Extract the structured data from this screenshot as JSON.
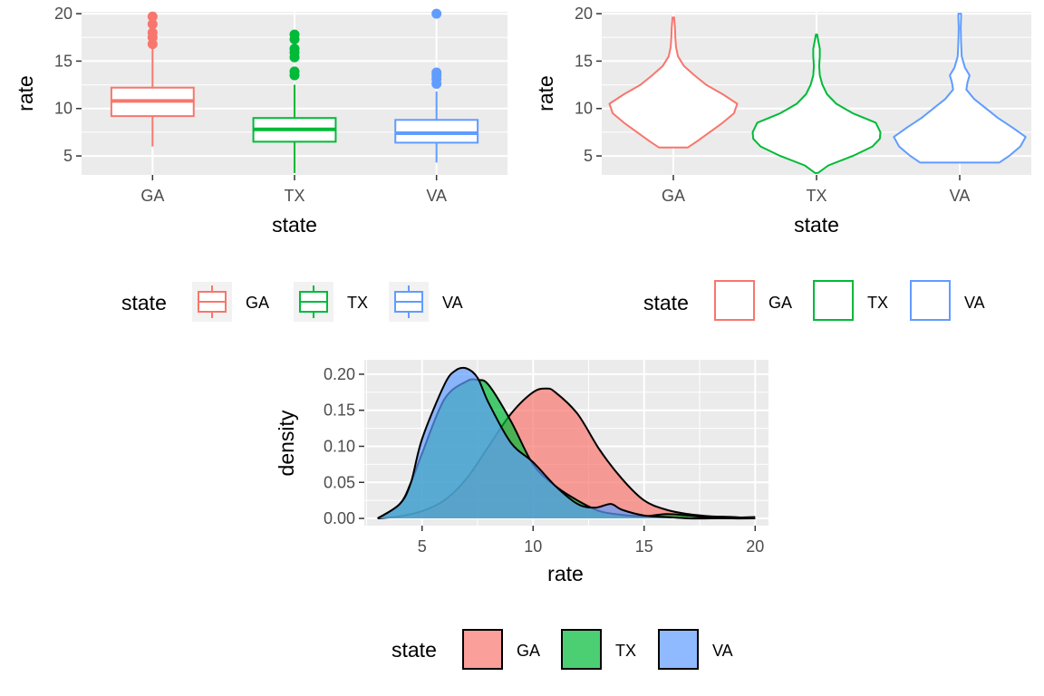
{
  "colors": {
    "GA": "#F8766D",
    "TX": "#00BA38",
    "VA": "#619CFF",
    "GA_fill": "#F8766D",
    "TX_fill": "#00BA38",
    "VA_fill": "#619CFF"
  },
  "chart_data": [
    {
      "type": "boxplot",
      "xlabel": "state",
      "ylabel": "rate",
      "categories": [
        "GA",
        "TX",
        "VA"
      ],
      "yticks": [
        "5",
        "10",
        "15",
        "20"
      ],
      "ylim": [
        3,
        20.2
      ],
      "boxes": [
        {
          "name": "GA",
          "min": 6.0,
          "q1": 9.2,
          "median": 10.8,
          "q3": 12.2,
          "max": 16.3,
          "outliers": [
            16.8,
            17.5,
            18.0,
            18.9,
            19.7
          ]
        },
        {
          "name": "TX",
          "min": 3.2,
          "q1": 6.5,
          "median": 7.8,
          "q3": 9.0,
          "max": 12.5,
          "outliers": [
            13.5,
            13.9,
            15.4,
            15.9,
            16.3,
            17.3,
            17.8
          ]
        },
        {
          "name": "VA",
          "min": 4.3,
          "q1": 6.4,
          "median": 7.4,
          "q3": 8.8,
          "max": 11.8,
          "outliers": [
            12.6,
            13.1,
            13.5,
            13.8,
            20.0
          ]
        }
      ],
      "legend": {
        "title": "state",
        "entries": [
          "GA",
          "TX",
          "VA"
        ]
      }
    },
    {
      "type": "violin",
      "xlabel": "state",
      "ylabel": "rate",
      "categories": [
        "GA",
        "TX",
        "VA"
      ],
      "yticks": [
        "5",
        "10",
        "15",
        "20"
      ],
      "ylim": [
        3,
        20.2
      ],
      "violins": [
        {
          "name": "GA",
          "profile": [
            [
              5.9,
              0.22
            ],
            [
              6.5,
              0.35
            ],
            [
              7.5,
              0.55
            ],
            [
              8.5,
              0.75
            ],
            [
              9.5,
              0.92
            ],
            [
              10.5,
              0.97
            ],
            [
              11.5,
              0.75
            ],
            [
              12.5,
              0.5
            ],
            [
              13.5,
              0.32
            ],
            [
              14.5,
              0.16
            ],
            [
              15.5,
              0.07
            ],
            [
              16.5,
              0.04
            ],
            [
              17.5,
              0.03
            ],
            [
              18.5,
              0.025
            ],
            [
              19.6,
              0.012
            ]
          ]
        },
        {
          "name": "TX",
          "profile": [
            [
              3.2,
              0.02
            ],
            [
              4.0,
              0.18
            ],
            [
              5.0,
              0.55
            ],
            [
              6.0,
              0.85
            ],
            [
              6.8,
              0.96
            ],
            [
              7.5,
              0.97
            ],
            [
              8.5,
              0.9
            ],
            [
              9.5,
              0.55
            ],
            [
              10.5,
              0.3
            ],
            [
              11.5,
              0.16
            ],
            [
              12.5,
              0.09
            ],
            [
              13.5,
              0.05
            ],
            [
              14.5,
              0.04
            ],
            [
              15.5,
              0.05
            ],
            [
              16.3,
              0.05
            ],
            [
              17.0,
              0.03
            ],
            [
              17.8,
              0.01
            ]
          ]
        },
        {
          "name": "VA",
          "profile": [
            [
              4.3,
              0.6
            ],
            [
              5.0,
              0.75
            ],
            [
              6.0,
              0.92
            ],
            [
              7.0,
              1.0
            ],
            [
              8.0,
              0.8
            ],
            [
              9.0,
              0.58
            ],
            [
              10.0,
              0.4
            ],
            [
              11.0,
              0.22
            ],
            [
              12.0,
              0.1
            ],
            [
              12.8,
              0.12
            ],
            [
              13.5,
              0.15
            ],
            [
              14.3,
              0.08
            ],
            [
              15.5,
              0.03
            ],
            [
              17.0,
              0.02
            ],
            [
              18.5,
              0.015
            ],
            [
              19.6,
              0.02
            ],
            [
              20.0,
              0.02
            ]
          ]
        }
      ],
      "legend": {
        "title": "state",
        "entries": [
          "GA",
          "TX",
          "VA"
        ]
      }
    },
    {
      "type": "area",
      "xlabel": "rate",
      "ylabel": "density",
      "xticks": [
        "5",
        "10",
        "15",
        "20"
      ],
      "yticks": [
        "0.00",
        "0.05",
        "0.10",
        "0.15",
        "0.20"
      ],
      "xlim": [
        2.4,
        20.6
      ],
      "ylim": [
        -0.01,
        0.22
      ],
      "series": [
        {
          "name": "GA",
          "x": [
            3.0,
            4.0,
            5.0,
            6.0,
            7.0,
            8.0,
            9.0,
            10.0,
            10.6,
            11.0,
            12.0,
            13.0,
            14.0,
            15.0,
            16.0,
            17.0,
            18.0,
            19.0,
            20.0
          ],
          "y": [
            0.0,
            0.003,
            0.01,
            0.025,
            0.055,
            0.1,
            0.145,
            0.175,
            0.18,
            0.175,
            0.145,
            0.095,
            0.055,
            0.025,
            0.012,
            0.006,
            0.003,
            0.002,
            0.0
          ]
        },
        {
          "name": "TX",
          "x": [
            3.0,
            4.0,
            4.5,
            5.0,
            6.0,
            7.0,
            7.5,
            8.0,
            9.0,
            10.0,
            11.0,
            12.0,
            13.0,
            14.0,
            15.0,
            16.0,
            17.0,
            18.0,
            19.0,
            20.0
          ],
          "y": [
            0.0,
            0.02,
            0.05,
            0.09,
            0.165,
            0.19,
            0.192,
            0.185,
            0.135,
            0.075,
            0.045,
            0.025,
            0.01,
            0.005,
            0.003,
            0.006,
            0.004,
            0.001,
            0.0,
            0.0
          ]
        },
        {
          "name": "VA",
          "x": [
            3.0,
            4.0,
            4.5,
            5.0,
            6.0,
            6.5,
            7.0,
            7.5,
            8.0,
            9.0,
            10.0,
            11.0,
            12.0,
            12.8,
            13.5,
            14.0,
            15.0,
            16.0,
            17.0,
            18.0,
            19.0,
            20.0
          ],
          "y": [
            0.0,
            0.02,
            0.05,
            0.11,
            0.185,
            0.205,
            0.208,
            0.195,
            0.16,
            0.105,
            0.078,
            0.045,
            0.02,
            0.015,
            0.02,
            0.012,
            0.004,
            0.002,
            0.0,
            0.0,
            0.001,
            0.002
          ]
        }
      ],
      "legend": {
        "title": "state",
        "entries": [
          "GA",
          "TX",
          "VA"
        ]
      }
    }
  ]
}
